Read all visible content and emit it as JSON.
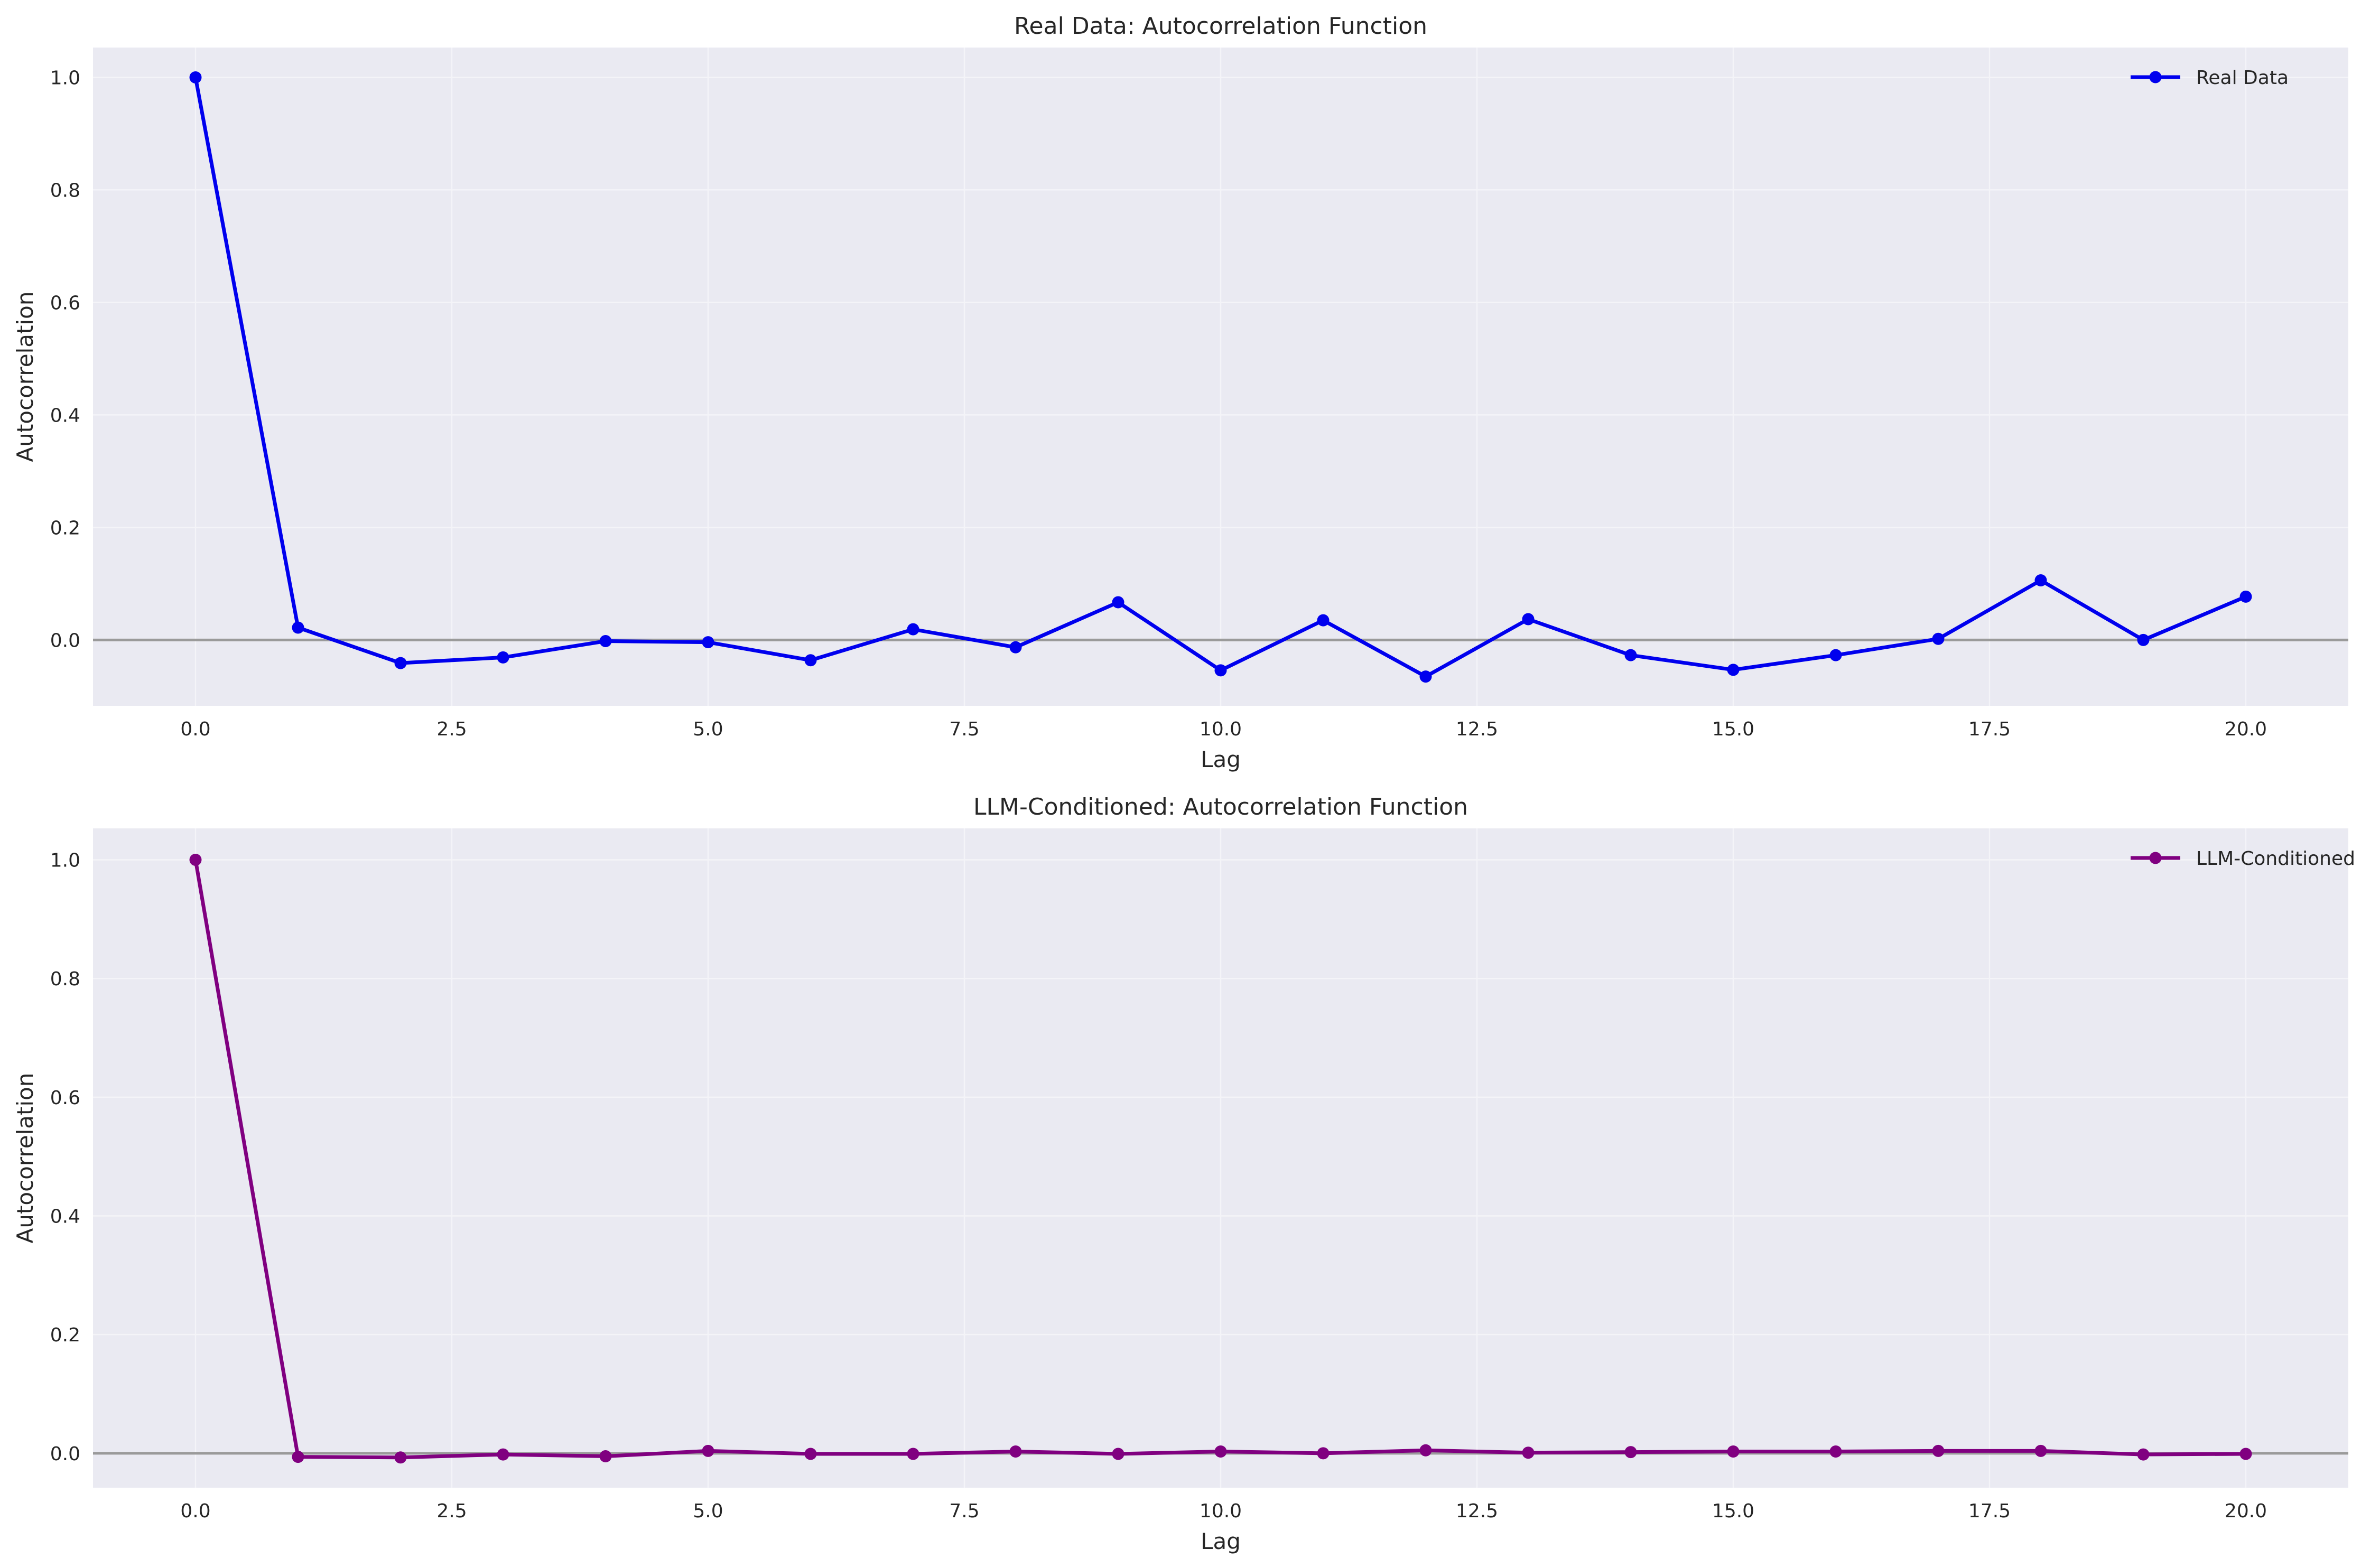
{
  "chart_data": [
    {
      "type": "line",
      "title": "Real Data: Autocorrelation Function",
      "xlabel": "Lag",
      "ylabel": "Autocorrelation",
      "xlim": [
        -1.0,
        21.0
      ],
      "ylim": [
        -0.117,
        1.053
      ],
      "xticks": [
        0.0,
        2.5,
        5.0,
        7.5,
        10.0,
        12.5,
        15.0,
        17.5,
        20.0
      ],
      "xtick_labels": [
        "0.0",
        "2.5",
        "5.0",
        "7.5",
        "10.0",
        "12.5",
        "15.0",
        "17.5",
        "20.0"
      ],
      "yticks": [
        0.0,
        0.2,
        0.4,
        0.6,
        0.8,
        1.0
      ],
      "ytick_labels": [
        "0.0",
        "0.2",
        "0.4",
        "0.6",
        "0.8",
        "1.0"
      ],
      "grid": true,
      "zero_line": 0.0,
      "legend_position": "top-right",
      "series": [
        {
          "name": "Real Data",
          "color": "#0000ee",
          "x": [
            0,
            1,
            2,
            3,
            4,
            5,
            6,
            7,
            8,
            9,
            10,
            11,
            12,
            13,
            14,
            15,
            16,
            17,
            18,
            19,
            20
          ],
          "values": [
            1.0,
            0.022,
            -0.041,
            -0.031,
            -0.002,
            -0.004,
            -0.036,
            0.019,
            -0.013,
            0.067,
            -0.054,
            0.035,
            -0.065,
            0.037,
            -0.027,
            -0.053,
            -0.027,
            0.002,
            0.106,
            0.0,
            0.077
          ]
        }
      ]
    },
    {
      "type": "line",
      "title": "LLM-Conditioned: Autocorrelation Function",
      "xlabel": "Lag",
      "ylabel": "Autocorrelation",
      "xlim": [
        -1.0,
        21.0
      ],
      "ylim": [
        -0.058,
        1.053
      ],
      "xticks": [
        0.0,
        2.5,
        5.0,
        7.5,
        10.0,
        12.5,
        15.0,
        17.5,
        20.0
      ],
      "xtick_labels": [
        "0.0",
        "2.5",
        "5.0",
        "7.5",
        "10.0",
        "12.5",
        "15.0",
        "17.5",
        "20.0"
      ],
      "yticks": [
        0.0,
        0.2,
        0.4,
        0.6,
        0.8,
        1.0
      ],
      "ytick_labels": [
        "0.0",
        "0.2",
        "0.4",
        "0.6",
        "0.8",
        "1.0"
      ],
      "grid": true,
      "zero_line": 0.0,
      "legend_position": "top-right",
      "series": [
        {
          "name": "LLM-Conditioned",
          "color": "#800080",
          "x": [
            0,
            1,
            2,
            3,
            4,
            5,
            6,
            7,
            8,
            9,
            10,
            11,
            12,
            13,
            14,
            15,
            16,
            17,
            18,
            19,
            20
          ],
          "values": [
            1.0,
            -0.006,
            -0.007,
            -0.002,
            -0.005,
            0.004,
            -0.001,
            -0.001,
            0.003,
            -0.001,
            0.003,
            0.0,
            0.005,
            0.001,
            0.002,
            0.003,
            0.003,
            0.004,
            0.004,
            -0.002,
            -0.001
          ]
        }
      ]
    }
  ]
}
